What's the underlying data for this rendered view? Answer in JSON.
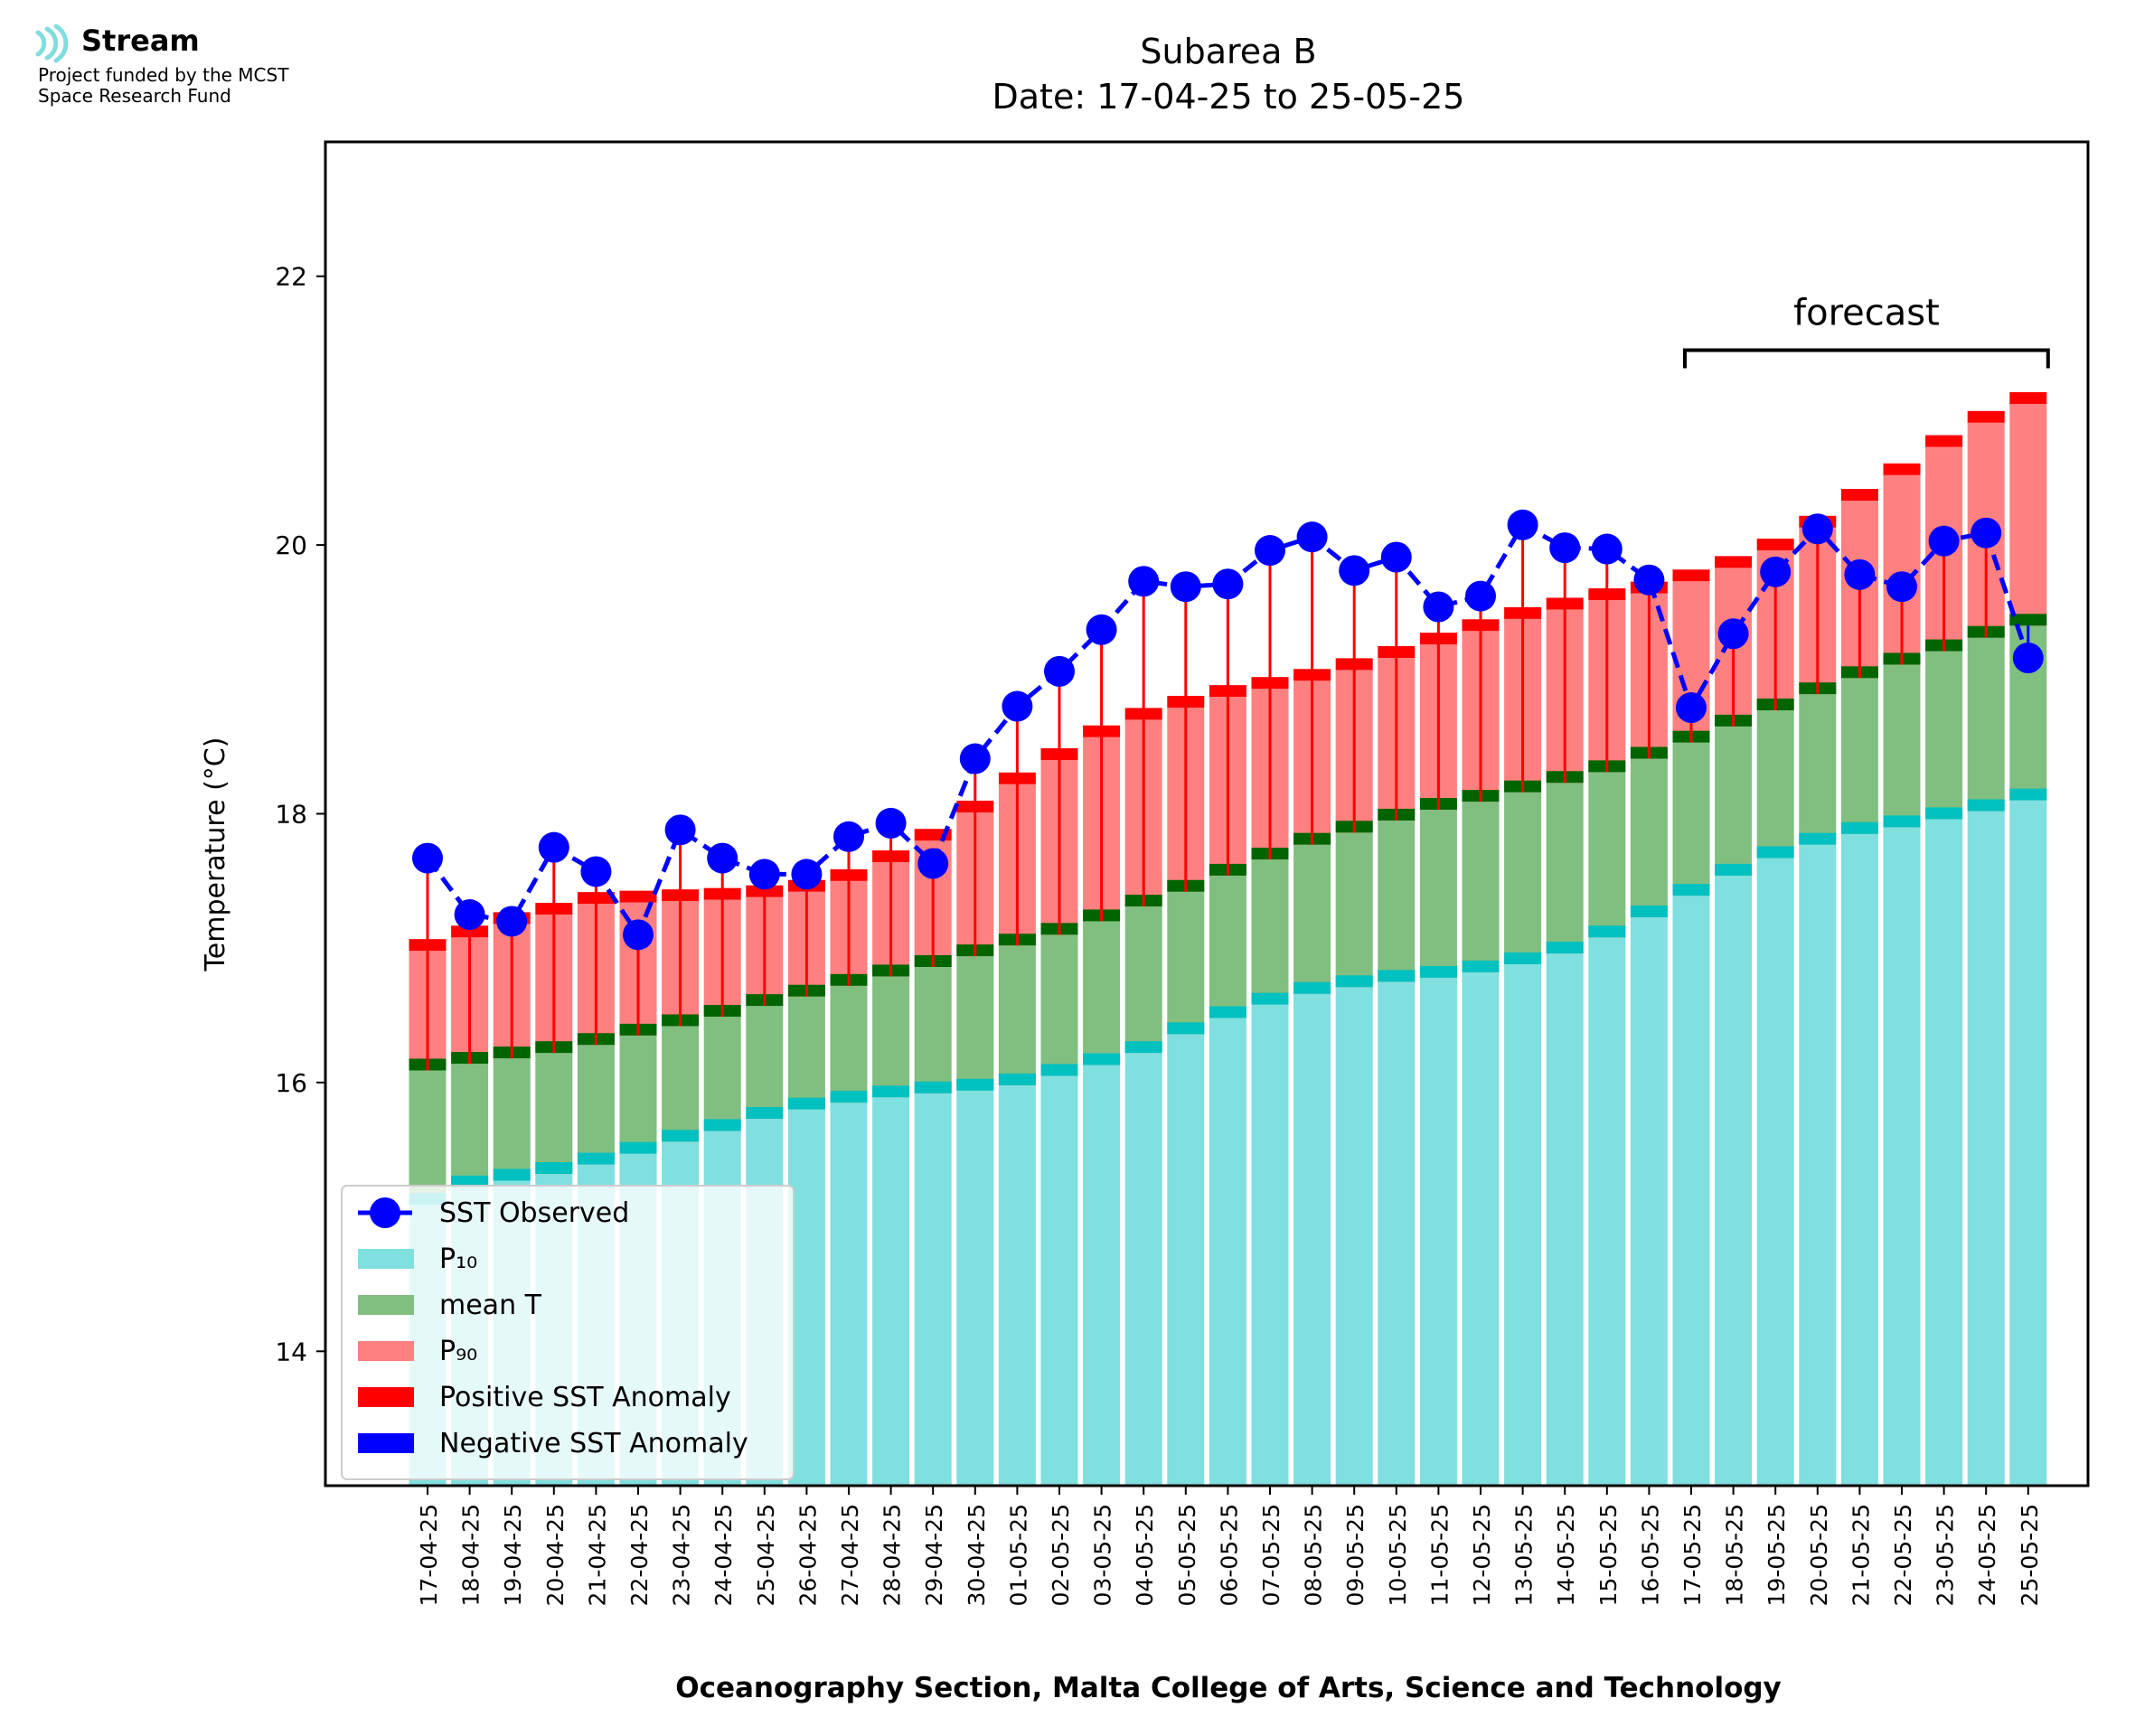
{
  "logo": {
    "name": "Stream",
    "subtitle_line1": "Project funded by the MCST",
    "subtitle_line2": "Space Research Fund",
    "color": "#7fdedd"
  },
  "chart_data": {
    "type": "bar",
    "title": "Subarea B",
    "subtitle": "Date: 17-04-25 to 25-05-25",
    "xlabel": "Oceanography Section, Malta College of Arts, Science and Technology",
    "ylabel": "Temperature (°C)",
    "ylim": [
      13.0,
      23.0
    ],
    "yticks": [
      14,
      16,
      18,
      20,
      22
    ],
    "categories": [
      "17-04-25",
      "18-04-25",
      "19-04-25",
      "20-04-25",
      "21-04-25",
      "22-04-25",
      "23-04-25",
      "24-04-25",
      "25-04-25",
      "26-04-25",
      "27-04-25",
      "28-04-25",
      "29-04-25",
      "30-04-25",
      "01-05-25",
      "02-05-25",
      "03-05-25",
      "04-05-25",
      "05-05-25",
      "06-05-25",
      "07-05-25",
      "08-05-25",
      "09-05-25",
      "10-05-25",
      "11-05-25",
      "12-05-25",
      "13-05-25",
      "14-05-25",
      "15-05-25",
      "16-05-25",
      "17-05-25",
      "18-05-25",
      "19-05-25",
      "20-05-25",
      "21-05-25",
      "22-05-25",
      "23-05-25",
      "24-05-25",
      "25-05-25"
    ],
    "series": [
      {
        "name": "SST Observed",
        "kind": "line",
        "color": "#0000ff",
        "values": [
          17.67,
          17.25,
          17.2,
          17.75,
          17.57,
          17.1,
          17.88,
          17.67,
          17.55,
          17.55,
          17.83,
          17.93,
          17.63,
          18.41,
          18.8,
          19.06,
          19.37,
          19.73,
          19.69,
          19.71,
          19.96,
          20.06,
          19.81,
          19.91,
          19.54,
          19.62,
          20.15,
          19.98,
          19.97,
          19.74,
          18.79,
          19.34,
          19.8,
          20.12,
          19.78,
          19.69,
          20.03,
          20.09,
          19.16
        ]
      },
      {
        "name": "P10",
        "kind": "bar",
        "color": "#80dfdf",
        "edge": "#00c0c0",
        "values": [
          15.09,
          15.22,
          15.27,
          15.32,
          15.39,
          15.47,
          15.56,
          15.64,
          15.73,
          15.8,
          15.85,
          15.89,
          15.92,
          15.94,
          15.98,
          16.05,
          16.13,
          16.22,
          16.36,
          16.48,
          16.58,
          16.66,
          16.71,
          16.75,
          16.78,
          16.82,
          16.88,
          16.96,
          17.08,
          17.23,
          17.39,
          17.54,
          17.67,
          17.77,
          17.85,
          17.9,
          17.96,
          18.02,
          18.1
        ]
      },
      {
        "name": "mean T",
        "kind": "bar",
        "color": "#80bf80",
        "edge": "#006400",
        "values": [
          16.09,
          16.14,
          16.18,
          16.22,
          16.28,
          16.35,
          16.42,
          16.49,
          16.57,
          16.64,
          16.72,
          16.79,
          16.86,
          16.94,
          17.02,
          17.1,
          17.2,
          17.31,
          17.42,
          17.54,
          17.66,
          17.77,
          17.86,
          17.95,
          18.03,
          18.09,
          18.16,
          18.23,
          18.31,
          18.41,
          18.53,
          18.65,
          18.77,
          18.89,
          19.01,
          19.11,
          19.21,
          19.31,
          19.4
        ]
      },
      {
        "name": "P90",
        "kind": "bar",
        "color": "#ff8080",
        "edge": "#ff0000",
        "values": [
          16.98,
          17.08,
          17.18,
          17.25,
          17.33,
          17.34,
          17.35,
          17.36,
          17.38,
          17.42,
          17.5,
          17.64,
          17.8,
          18.01,
          18.22,
          18.4,
          18.57,
          18.7,
          18.79,
          18.87,
          18.93,
          18.99,
          19.07,
          19.16,
          19.26,
          19.36,
          19.45,
          19.52,
          19.59,
          19.64,
          19.73,
          19.83,
          19.96,
          20.13,
          20.33,
          20.52,
          20.73,
          20.91,
          21.05
        ]
      },
      {
        "name": "Positive SST Anomaly",
        "kind": "stem",
        "color": "#ff0000"
      },
      {
        "name": "Negative SST Anomaly",
        "kind": "stem",
        "color": "#0000ff"
      }
    ],
    "legend": {
      "placement": "lower-left",
      "entries": [
        {
          "label": "SST Observed",
          "swatch": "line-marker",
          "color": "#0000ff"
        },
        {
          "label": "P₁₀",
          "swatch": "patch",
          "color": "#80dfdf"
        },
        {
          "label": "mean T",
          "swatch": "patch",
          "color": "#80bf80"
        },
        {
          "label": "P₉₀",
          "swatch": "patch",
          "color": "#ff8080"
        },
        {
          "label": "Positive SST Anomaly",
          "swatch": "patch",
          "color": "#ff0000"
        },
        {
          "label": "Negative SST Anomaly",
          "swatch": "patch",
          "color": "#0000ff"
        }
      ]
    },
    "annotation": {
      "text": "forecast",
      "from_category": "17-05-25",
      "to_category": "25-05-25"
    },
    "grid": false
  }
}
